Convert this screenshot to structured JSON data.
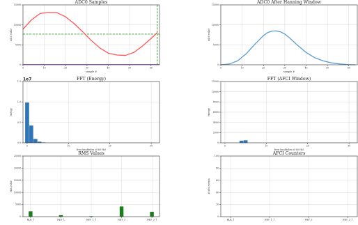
{
  "figure": {
    "background": "#ffffff",
    "grid": true
  },
  "chart_data": [
    {
      "type": "line",
      "title": "ADC0 Samples",
      "xlabel": "sample #",
      "ylabel": "adc0 value",
      "xlim": [
        0,
        64
      ],
      "ylim": [
        0,
        16000
      ],
      "xticks": [
        "0",
        "10",
        "20",
        "30",
        "40",
        "50",
        "60"
      ],
      "yticks": [
        "0",
        "5000",
        "10000",
        "15000"
      ],
      "series": [
        {
          "color": "#ff5555",
          "x": [
            0,
            4,
            8,
            12,
            16,
            20,
            24,
            28,
            32,
            36,
            40,
            44,
            48,
            52,
            56,
            60,
            63
          ],
          "y": [
            9500,
            12000,
            13700,
            14000,
            13900,
            12800,
            11000,
            8800,
            6500,
            4500,
            3100,
            2600,
            2500,
            3300,
            5000,
            7000,
            8600
          ]
        }
      ],
      "reference_lines": [
        {
          "orientation": "horizontal",
          "value": 8200,
          "style": "dashed",
          "color": "#2e9e2e"
        },
        {
          "orientation": "vertical",
          "value": 63,
          "style": "dashed",
          "color": "#2e9e2e"
        },
        {
          "orientation": "horizontal",
          "value": 0,
          "style": "solid",
          "color": "#b14fd0"
        }
      ]
    },
    {
      "type": "line",
      "title": "ADC0 After Hanning Window",
      "xlabel": "sample #",
      "ylabel": "adc0 value",
      "xlim": [
        0,
        64
      ],
      "ylim": [
        0,
        16000
      ],
      "xticks": [
        "0",
        "10",
        "20",
        "30",
        "40",
        "50",
        "60"
      ],
      "yticks": [
        "0",
        "5000",
        "10000",
        "15000"
      ],
      "series": [
        {
          "color": "#5b9bd5",
          "x": [
            0,
            4,
            8,
            12,
            16,
            20,
            22,
            24,
            26,
            28,
            30,
            32,
            36,
            40,
            44,
            48,
            52,
            56,
            60,
            63
          ],
          "y": [
            0,
            200,
            1100,
            3000,
            5500,
            7800,
            8600,
            9000,
            9050,
            8800,
            8200,
            7300,
            5200,
            3300,
            1900,
            1050,
            500,
            200,
            40,
            0
          ]
        }
      ]
    },
    {
      "type": "bar",
      "title": "FFT (Energy)",
      "xlabel": "freq (multiples of 60 Hz)",
      "ylabel": "energy",
      "offset_label": "1e7",
      "xlim": [
        -1,
        32
      ],
      "ylim": [
        0,
        1.6
      ],
      "xticks": [
        "0",
        "10",
        "20",
        "30"
      ],
      "yticks": [
        "0.0",
        "0.5",
        "1.0",
        "1.5"
      ],
      "color": "#2f75b5",
      "x": [
        0,
        1,
        2,
        3,
        4
      ],
      "values": [
        1.05,
        0.45,
        0.1,
        0.03,
        0.01
      ]
    },
    {
      "type": "bar",
      "title": "FFT (AFCI Window)",
      "xlabel": "freq (multiples of 60 Hz)",
      "ylabel": "energy",
      "xlim": [
        -1,
        32
      ],
      "ylim": [
        0,
        12000
      ],
      "xticks": [
        "0",
        "10",
        "20",
        "30"
      ],
      "yticks": [
        "0",
        "2000",
        "4000",
        "6000",
        "8000",
        "10000",
        "12000"
      ],
      "color": "#2f75b5",
      "x": [
        4,
        5
      ],
      "values": [
        400,
        500
      ]
    },
    {
      "type": "bar",
      "title": "RMS Values",
      "ylabel": "rms value",
      "ylim": [
        0,
        25000
      ],
      "yticks": [
        "0",
        "5000",
        "10000",
        "15000",
        "20000",
        "25000"
      ],
      "color": "#1a7f1a",
      "categories": [
        "RLK_1",
        "",
        "NET_1",
        "",
        "NET_1_1",
        "",
        "NET_3",
        "",
        "NET_3_1"
      ],
      "tick_positions": [
        0,
        2,
        4,
        6,
        8
      ],
      "values": [
        2200,
        0,
        600,
        0,
        200,
        0,
        4200,
        0,
        2000
      ]
    },
    {
      "type": "bar",
      "title": "AFCI Counters",
      "ylabel": "# afci events",
      "ylim": [
        0,
        100
      ],
      "yticks": [
        "0",
        "20",
        "40",
        "60",
        "80",
        "100"
      ],
      "color": "#1a7f1a",
      "categories": [
        "RLK_1",
        "",
        "NET_1_1",
        "",
        "NET_3",
        "",
        "NET_3_1"
      ],
      "tick_positions": [
        0,
        2,
        4,
        6
      ],
      "values": [
        0,
        0,
        0,
        0,
        0,
        0,
        0
      ]
    }
  ]
}
